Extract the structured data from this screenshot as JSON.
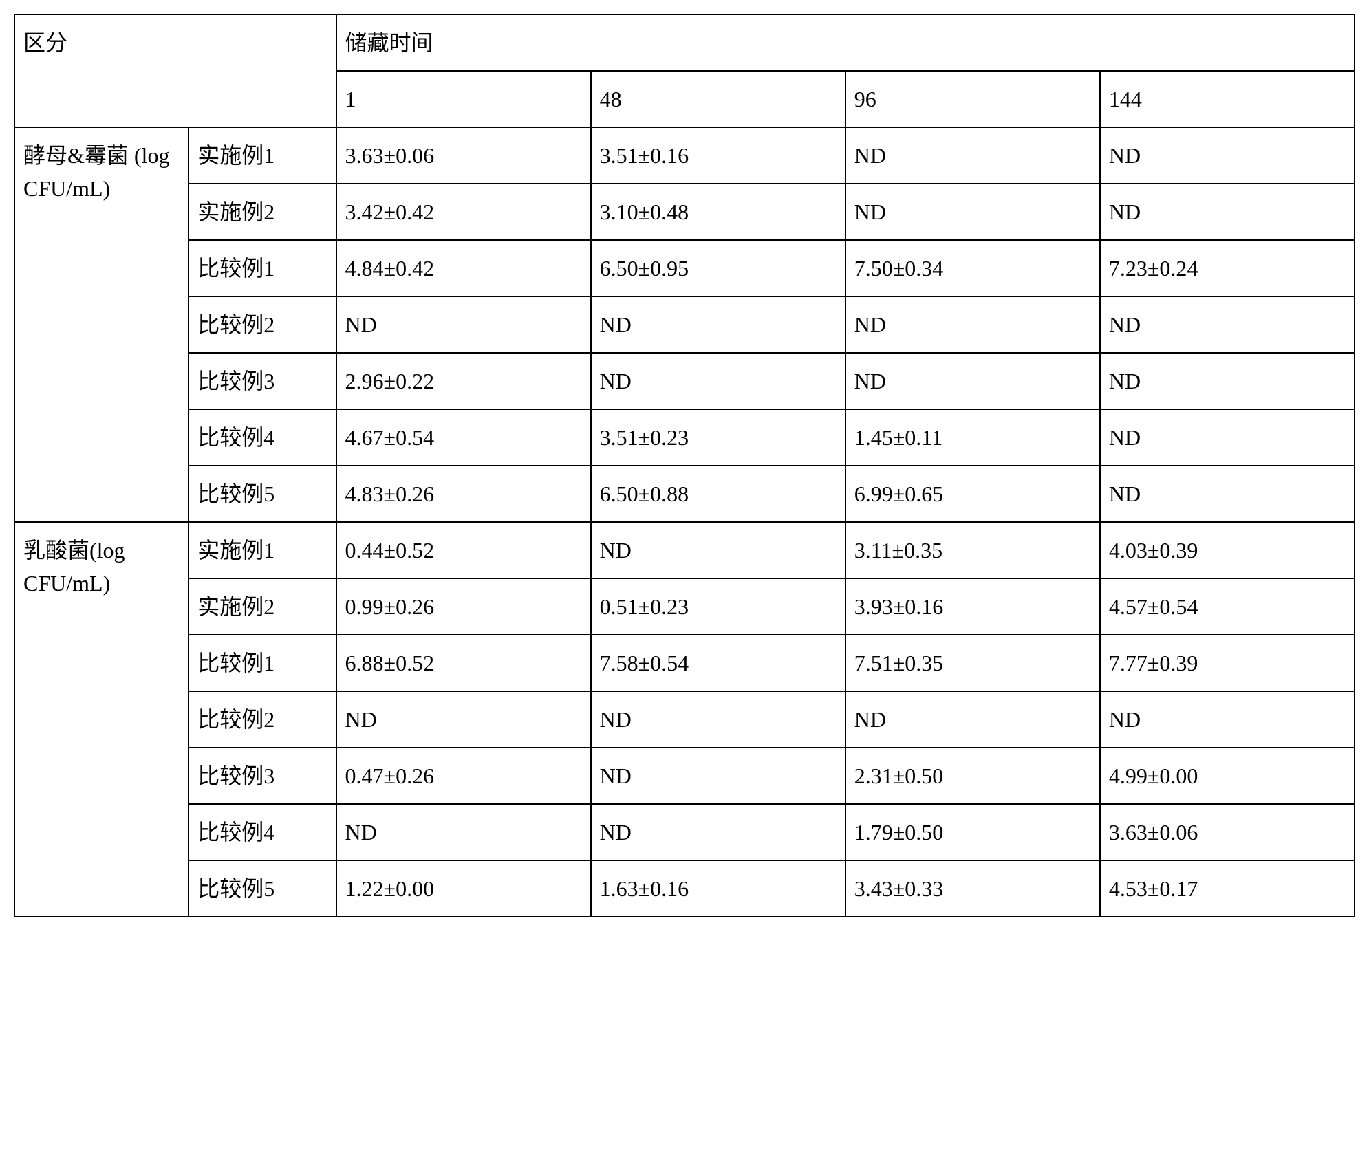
{
  "table": {
    "header": {
      "group_col_label": "区分",
      "time_header": "储藏时间",
      "time_columns": [
        "1",
        "48",
        "96",
        "144"
      ]
    },
    "groups": [
      {
        "name": "酵母&霉菌 (log CFU/mL)",
        "rows": [
          {
            "label": "实施例1",
            "values": [
              "3.63±0.06",
              "3.51±0.16",
              "ND",
              "ND"
            ]
          },
          {
            "label": "实施例2",
            "values": [
              "3.42±0.42",
              "3.10±0.48",
              "ND",
              "ND"
            ]
          },
          {
            "label": "比较例1",
            "values": [
              "4.84±0.42",
              "6.50±0.95",
              "7.50±0.34",
              "7.23±0.24"
            ]
          },
          {
            "label": "比较例2",
            "values": [
              "ND",
              "ND",
              "ND",
              "ND"
            ]
          },
          {
            "label": "比较例3",
            "values": [
              "2.96±0.22",
              "ND",
              "ND",
              "ND"
            ]
          },
          {
            "label": "比较例4",
            "values": [
              "4.67±0.54",
              "3.51±0.23",
              "1.45±0.11",
              "ND"
            ]
          },
          {
            "label": "比较例5",
            "values": [
              "4.83±0.26",
              "6.50±0.88",
              "6.99±0.65",
              "ND"
            ]
          }
        ]
      },
      {
        "name": "乳酸菌(log CFU/mL)",
        "rows": [
          {
            "label": "实施例1",
            "values": [
              "0.44±0.52",
              "ND",
              "3.11±0.35",
              "4.03±0.39"
            ]
          },
          {
            "label": "实施例2",
            "values": [
              "0.99±0.26",
              "0.51±0.23",
              "3.93±0.16",
              "4.57±0.54"
            ]
          },
          {
            "label": "比较例1",
            "values": [
              "6.88±0.52",
              "7.58±0.54",
              "7.51±0.35",
              "7.77±0.39"
            ]
          },
          {
            "label": "比较例2",
            "values": [
              "ND",
              "ND",
              "ND",
              "ND"
            ]
          },
          {
            "label": "比较例3",
            "values": [
              "0.47±0.26",
              "ND",
              "2.31±0.50",
              "4.99±0.00"
            ]
          },
          {
            "label": "比较例4",
            "values": [
              "ND",
              "ND",
              "1.79±0.50",
              "3.63±0.06"
            ]
          },
          {
            "label": "比较例5",
            "values": [
              "1.22±0.00",
              "1.63±0.16",
              "3.43±0.33",
              "4.53±0.17"
            ]
          }
        ]
      }
    ],
    "styling": {
      "type": "table",
      "border_color": "#000000",
      "border_width": 2,
      "background_color": "#ffffff",
      "text_color": "#000000",
      "font_family": "serif",
      "font_size": 32,
      "cell_padding": 16
    }
  }
}
